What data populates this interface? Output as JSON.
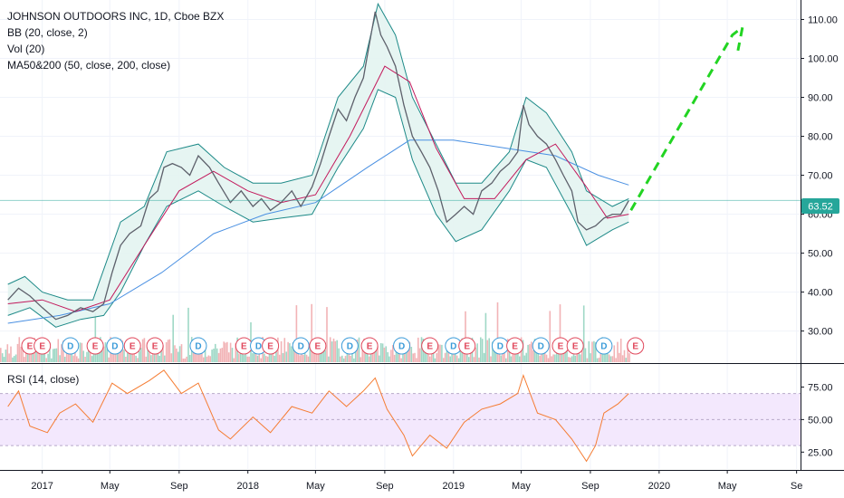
{
  "chart_data": {
    "type": "line",
    "title": "JOHNSON OUTDOORS INC, 1D, Cboe BZX",
    "indicators": [
      "BB (20, close, 2)",
      "Vol (20)",
      "MA50&200 (50, close, 200, close)"
    ],
    "rsi_label": "RSI (14, close)",
    "last_price": "63.52",
    "price_axis": {
      "ticks": [
        "110.00",
        "100.00",
        "90.00",
        "80.00",
        "70.00",
        "60.00",
        "50.00",
        "40.00",
        "30.00"
      ],
      "ylim": [
        22,
        115
      ]
    },
    "rsi_axis": {
      "ticks": [
        "75.00",
        "50.00",
        "25.00"
      ],
      "ylim": [
        12,
        92
      ],
      "band": [
        30,
        70
      ]
    },
    "time_axis": {
      "ticks": [
        "2017",
        "May",
        "Sep",
        "2018",
        "May",
        "Sep",
        "2019",
        "May",
        "Sep",
        "2020",
        "May",
        "Se"
      ]
    },
    "price_series": [
      {
        "d": "2016-11-01",
        "v": 38
      },
      {
        "d": "2016-11-20",
        "v": 41
      },
      {
        "d": "2016-12-10",
        "v": 39
      },
      {
        "d": "2017-01-01",
        "v": 36
      },
      {
        "d": "2017-01-25",
        "v": 33
      },
      {
        "d": "2017-02-15",
        "v": 34
      },
      {
        "d": "2017-03-10",
        "v": 36
      },
      {
        "d": "2017-04-01",
        "v": 35
      },
      {
        "d": "2017-04-20",
        "v": 37
      },
      {
        "d": "2017-05-05",
        "v": 45
      },
      {
        "d": "2017-05-20",
        "v": 52
      },
      {
        "d": "2017-06-05",
        "v": 55
      },
      {
        "d": "2017-06-25",
        "v": 57
      },
      {
        "d": "2017-07-10",
        "v": 64
      },
      {
        "d": "2017-07-25",
        "v": 66
      },
      {
        "d": "2017-08-05",
        "v": 72
      },
      {
        "d": "2017-08-20",
        "v": 73
      },
      {
        "d": "2017-09-05",
        "v": 72
      },
      {
        "d": "2017-09-20",
        "v": 70
      },
      {
        "d": "2017-10-05",
        "v": 75
      },
      {
        "d": "2017-10-25",
        "v": 72
      },
      {
        "d": "2017-11-10",
        "v": 68
      },
      {
        "d": "2017-12-01",
        "v": 63
      },
      {
        "d": "2017-12-20",
        "v": 66
      },
      {
        "d": "2018-01-10",
        "v": 62
      },
      {
        "d": "2018-01-25",
        "v": 64
      },
      {
        "d": "2018-02-10",
        "v": 61
      },
      {
        "d": "2018-03-01",
        "v": 63
      },
      {
        "d": "2018-03-20",
        "v": 66
      },
      {
        "d": "2018-04-05",
        "v": 62
      },
      {
        "d": "2018-04-25",
        "v": 67
      },
      {
        "d": "2018-05-10",
        "v": 73
      },
      {
        "d": "2018-05-25",
        "v": 80
      },
      {
        "d": "2018-06-10",
        "v": 87
      },
      {
        "d": "2018-06-25",
        "v": 84
      },
      {
        "d": "2018-07-10",
        "v": 90
      },
      {
        "d": "2018-07-25",
        "v": 95
      },
      {
        "d": "2018-08-05",
        "v": 104
      },
      {
        "d": "2018-08-15",
        "v": 112
      },
      {
        "d": "2018-08-25",
        "v": 106
      },
      {
        "d": "2018-09-05",
        "v": 103
      },
      {
        "d": "2018-09-20",
        "v": 98
      },
      {
        "d": "2018-10-05",
        "v": 88
      },
      {
        "d": "2018-10-20",
        "v": 80
      },
      {
        "d": "2018-11-05",
        "v": 76
      },
      {
        "d": "2018-11-20",
        "v": 72
      },
      {
        "d": "2018-12-05",
        "v": 66
      },
      {
        "d": "2018-12-20",
        "v": 58
      },
      {
        "d": "2019-01-05",
        "v": 60
      },
      {
        "d": "2019-01-20",
        "v": 62
      },
      {
        "d": "2019-02-05",
        "v": 60
      },
      {
        "d": "2019-02-20",
        "v": 66
      },
      {
        "d": "2019-03-10",
        "v": 68
      },
      {
        "d": "2019-03-25",
        "v": 71
      },
      {
        "d": "2019-04-10",
        "v": 73
      },
      {
        "d": "2019-04-25",
        "v": 76
      },
      {
        "d": "2019-05-05",
        "v": 88
      },
      {
        "d": "2019-05-15",
        "v": 83
      },
      {
        "d": "2019-05-30",
        "v": 80
      },
      {
        "d": "2019-06-15",
        "v": 78
      },
      {
        "d": "2019-07-01",
        "v": 74
      },
      {
        "d": "2019-07-15",
        "v": 70
      },
      {
        "d": "2019-07-30",
        "v": 66
      },
      {
        "d": "2019-08-10",
        "v": 58
      },
      {
        "d": "2019-08-25",
        "v": 56
      },
      {
        "d": "2019-09-10",
        "v": 57
      },
      {
        "d": "2019-09-25",
        "v": 59
      },
      {
        "d": "2019-10-10",
        "v": 60
      },
      {
        "d": "2019-10-25",
        "v": 60
      },
      {
        "d": "2019-11-08",
        "v": 63.5
      }
    ],
    "bb_upper": [
      {
        "d": "2016-11-01",
        "v": 42
      },
      {
        "d": "2016-12-01",
        "v": 44
      },
      {
        "d": "2017-01-01",
        "v": 40
      },
      {
        "d": "2017-02-15",
        "v": 38
      },
      {
        "d": "2017-04-01",
        "v": 38
      },
      {
        "d": "2017-05-20",
        "v": 58
      },
      {
        "d": "2017-07-01",
        "v": 62
      },
      {
        "d": "2017-08-10",
        "v": 76
      },
      {
        "d": "2017-10-05",
        "v": 78
      },
      {
        "d": "2017-11-20",
        "v": 72
      },
      {
        "d": "2018-01-10",
        "v": 68
      },
      {
        "d": "2018-03-01",
        "v": 68
      },
      {
        "d": "2018-04-25",
        "v": 70
      },
      {
        "d": "2018-06-10",
        "v": 90
      },
      {
        "d": "2018-07-25",
        "v": 98
      },
      {
        "d": "2018-08-20",
        "v": 114
      },
      {
        "d": "2018-09-20",
        "v": 106
      },
      {
        "d": "2018-10-20",
        "v": 90
      },
      {
        "d": "2018-12-01",
        "v": 78
      },
      {
        "d": "2019-01-05",
        "v": 68
      },
      {
        "d": "2019-02-20",
        "v": 68
      },
      {
        "d": "2019-04-10",
        "v": 76
      },
      {
        "d": "2019-05-10",
        "v": 90
      },
      {
        "d": "2019-06-15",
        "v": 86
      },
      {
        "d": "2019-07-30",
        "v": 76
      },
      {
        "d": "2019-08-25",
        "v": 66
      },
      {
        "d": "2019-10-10",
        "v": 62
      },
      {
        "d": "2019-11-08",
        "v": 64
      }
    ],
    "bb_lower": [
      {
        "d": "2016-11-01",
        "v": 34
      },
      {
        "d": "2016-12-10",
        "v": 36
      },
      {
        "d": "2017-01-25",
        "v": 31
      },
      {
        "d": "2017-03-10",
        "v": 33
      },
      {
        "d": "2017-04-20",
        "v": 34
      },
      {
        "d": "2017-05-20",
        "v": 40
      },
      {
        "d": "2017-07-01",
        "v": 52
      },
      {
        "d": "2017-08-10",
        "v": 62
      },
      {
        "d": "2017-10-05",
        "v": 66
      },
      {
        "d": "2017-11-20",
        "v": 62
      },
      {
        "d": "2018-01-10",
        "v": 58
      },
      {
        "d": "2018-03-01",
        "v": 59
      },
      {
        "d": "2018-04-25",
        "v": 60
      },
      {
        "d": "2018-06-10",
        "v": 72
      },
      {
        "d": "2018-07-25",
        "v": 82
      },
      {
        "d": "2018-08-20",
        "v": 92
      },
      {
        "d": "2018-09-20",
        "v": 90
      },
      {
        "d": "2018-10-20",
        "v": 74
      },
      {
        "d": "2018-12-01",
        "v": 60
      },
      {
        "d": "2019-01-05",
        "v": 53
      },
      {
        "d": "2019-02-20",
        "v": 56
      },
      {
        "d": "2019-04-10",
        "v": 66
      },
      {
        "d": "2019-05-10",
        "v": 74
      },
      {
        "d": "2019-06-15",
        "v": 72
      },
      {
        "d": "2019-07-30",
        "v": 60
      },
      {
        "d": "2019-08-25",
        "v": 52
      },
      {
        "d": "2019-10-10",
        "v": 56
      },
      {
        "d": "2019-11-08",
        "v": 58
      }
    ],
    "ma50": [
      {
        "d": "2016-11-01",
        "v": 37
      },
      {
        "d": "2017-01-01",
        "v": 38
      },
      {
        "d": "2017-03-01",
        "v": 35
      },
      {
        "d": "2017-05-01",
        "v": 38
      },
      {
        "d": "2017-07-01",
        "v": 52
      },
      {
        "d": "2017-09-01",
        "v": 66
      },
      {
        "d": "2017-11-01",
        "v": 71
      },
      {
        "d": "2018-01-01",
        "v": 66
      },
      {
        "d": "2018-03-01",
        "v": 63
      },
      {
        "d": "2018-05-01",
        "v": 65
      },
      {
        "d": "2018-07-01",
        "v": 80
      },
      {
        "d": "2018-09-01",
        "v": 98
      },
      {
        "d": "2018-10-15",
        "v": 94
      },
      {
        "d": "2018-12-01",
        "v": 77
      },
      {
        "d": "2019-01-20",
        "v": 64
      },
      {
        "d": "2019-03-15",
        "v": 64
      },
      {
        "d": "2019-05-10",
        "v": 74
      },
      {
        "d": "2019-07-01",
        "v": 78
      },
      {
        "d": "2019-08-25",
        "v": 67
      },
      {
        "d": "2019-10-01",
        "v": 59
      },
      {
        "d": "2019-11-08",
        "v": 60
      }
    ],
    "ma200": [
      {
        "d": "2016-11-01",
        "v": 32
      },
      {
        "d": "2017-02-01",
        "v": 34
      },
      {
        "d": "2017-05-01",
        "v": 37
      },
      {
        "d": "2017-08-01",
        "v": 45
      },
      {
        "d": "2017-11-01",
        "v": 55
      },
      {
        "d": "2018-02-01",
        "v": 60
      },
      {
        "d": "2018-05-01",
        "v": 63
      },
      {
        "d": "2018-08-01",
        "v": 72
      },
      {
        "d": "2018-10-15",
        "v": 79
      },
      {
        "d": "2019-01-01",
        "v": 79
      },
      {
        "d": "2019-04-01",
        "v": 77
      },
      {
        "d": "2019-07-01",
        "v": 75
      },
      {
        "d": "2019-09-15",
        "v": 70
      },
      {
        "d": "2019-11-08",
        "v": 67.5
      }
    ],
    "projection": [
      {
        "d": "2019-11-12",
        "v": 61
      },
      {
        "d": "2020-05-10",
        "v": 106
      },
      {
        "d": "2020-05-28",
        "v": 108
      },
      {
        "d": "2020-05-20",
        "v": 102
      }
    ],
    "rsi": [
      {
        "d": "2016-11-01",
        "v": 60
      },
      {
        "d": "2016-11-20",
        "v": 72
      },
      {
        "d": "2016-12-10",
        "v": 45
      },
      {
        "d": "2017-01-10",
        "v": 40
      },
      {
        "d": "2017-02-01",
        "v": 55
      },
      {
        "d": "2017-03-01",
        "v": 62
      },
      {
        "d": "2017-04-01",
        "v": 48
      },
      {
        "d": "2017-05-05",
        "v": 78
      },
      {
        "d": "2017-06-01",
        "v": 70
      },
      {
        "d": "2017-07-10",
        "v": 80
      },
      {
        "d": "2017-08-05",
        "v": 88
      },
      {
        "d": "2017-09-05",
        "v": 70
      },
      {
        "d": "2017-10-05",
        "v": 78
      },
      {
        "d": "2017-11-10",
        "v": 42
      },
      {
        "d": "2017-12-01",
        "v": 35
      },
      {
        "d": "2018-01-10",
        "v": 52
      },
      {
        "d": "2018-02-10",
        "v": 40
      },
      {
        "d": "2018-03-20",
        "v": 60
      },
      {
        "d": "2018-04-25",
        "v": 55
      },
      {
        "d": "2018-05-25",
        "v": 72
      },
      {
        "d": "2018-06-25",
        "v": 60
      },
      {
        "d": "2018-07-25",
        "v": 72
      },
      {
        "d": "2018-08-15",
        "v": 82
      },
      {
        "d": "2018-09-05",
        "v": 58
      },
      {
        "d": "2018-10-05",
        "v": 38
      },
      {
        "d": "2018-10-20",
        "v": 22
      },
      {
        "d": "2018-11-20",
        "v": 38
      },
      {
        "d": "2018-12-20",
        "v": 28
      },
      {
        "d": "2019-01-20",
        "v": 48
      },
      {
        "d": "2019-02-20",
        "v": 58
      },
      {
        "d": "2019-03-25",
        "v": 62
      },
      {
        "d": "2019-04-25",
        "v": 70
      },
      {
        "d": "2019-05-05",
        "v": 84
      },
      {
        "d": "2019-05-30",
        "v": 55
      },
      {
        "d": "2019-07-01",
        "v": 50
      },
      {
        "d": "2019-07-30",
        "v": 35
      },
      {
        "d": "2019-08-25",
        "v": 18
      },
      {
        "d": "2019-09-10",
        "v": 30
      },
      {
        "d": "2019-09-25",
        "v": 55
      },
      {
        "d": "2019-10-20",
        "v": 62
      },
      {
        "d": "2019-11-08",
        "v": 70
      }
    ],
    "events": [
      {
        "d": "2016-12-10",
        "t": "E"
      },
      {
        "d": "2017-01-01",
        "t": "E"
      },
      {
        "d": "2017-02-20",
        "t": "D"
      },
      {
        "d": "2017-04-05",
        "t": "E"
      },
      {
        "d": "2017-05-10",
        "t": "D"
      },
      {
        "d": "2017-06-10",
        "t": "E"
      },
      {
        "d": "2017-07-20",
        "t": "E"
      },
      {
        "d": "2017-10-05",
        "t": "D"
      },
      {
        "d": "2017-12-25",
        "t": "E"
      },
      {
        "d": "2018-01-20",
        "t": "D"
      },
      {
        "d": "2018-02-10",
        "t": "E"
      },
      {
        "d": "2018-04-05",
        "t": "D"
      },
      {
        "d": "2018-05-05",
        "t": "E"
      },
      {
        "d": "2018-07-01",
        "t": "D"
      },
      {
        "d": "2018-08-05",
        "t": "E"
      },
      {
        "d": "2018-10-01",
        "t": "D"
      },
      {
        "d": "2018-11-20",
        "t": "E"
      },
      {
        "d": "2019-01-01",
        "t": "D"
      },
      {
        "d": "2019-01-25",
        "t": "E"
      },
      {
        "d": "2019-03-25",
        "t": "D"
      },
      {
        "d": "2019-04-20",
        "t": "E"
      },
      {
        "d": "2019-06-05",
        "t": "D"
      },
      {
        "d": "2019-07-10",
        "t": "E"
      },
      {
        "d": "2019-08-05",
        "t": "E"
      },
      {
        "d": "2019-09-25",
        "t": "D"
      },
      {
        "d": "2019-11-20",
        "t": "E"
      }
    ]
  },
  "colors": {
    "price": "#5d606b",
    "bb": "#1e8a88",
    "bb_fill": "#e3f4f1",
    "ma50": "#c2185b",
    "ma200": "#4a90e2",
    "projection": "#22d422",
    "rsi": "#f57c32",
    "rsi_band": "#f3e8fd",
    "last_price_bg": "#26a69a",
    "dividend": "#3a9bd9",
    "earnings": "#e0475b",
    "grid": "#f0f3fa"
  }
}
